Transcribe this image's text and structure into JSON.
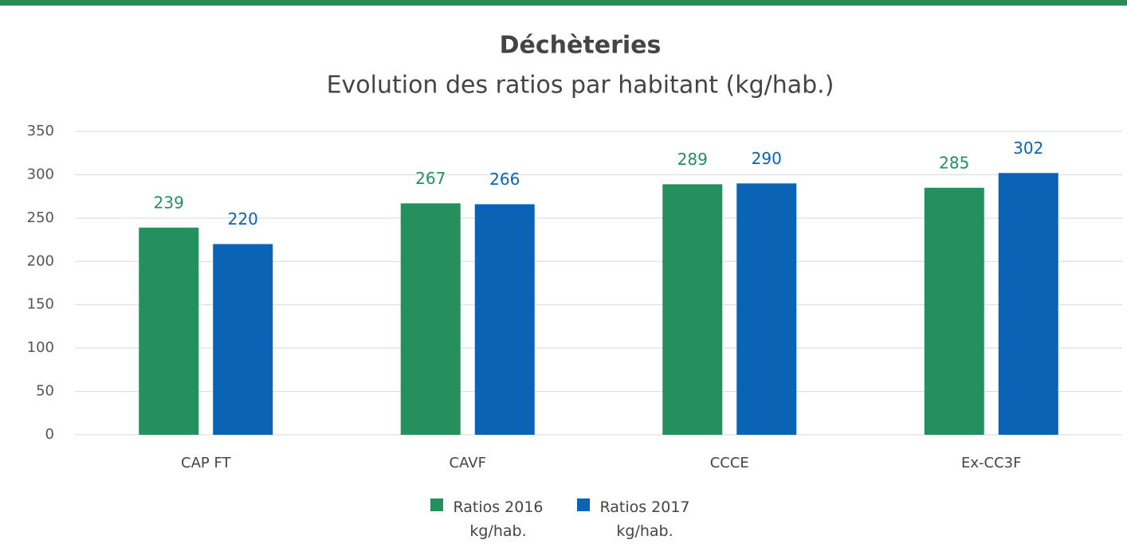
{
  "chart_data": {
    "type": "bar",
    "title": "Déchèteries",
    "subtitle": "Evolution des ratios par habitant (kg/hab.)",
    "categories": [
      "CAP FT",
      "CAVF",
      "CCCE",
      "Ex-CC3F"
    ],
    "series": [
      {
        "name": "Ratios 2016 kg/hab.",
        "color": "#23905e",
        "values": [
          239,
          267,
          289,
          285
        ]
      },
      {
        "name": "Ratios 2017 kg/hab.",
        "color": "#0a63b5",
        "values": [
          220,
          266,
          290,
          302
        ]
      }
    ],
    "ylim": [
      0,
      350
    ],
    "yticks": [
      0,
      50,
      100,
      150,
      200,
      250,
      300,
      350
    ],
    "grid": true,
    "legend": "bottom"
  }
}
